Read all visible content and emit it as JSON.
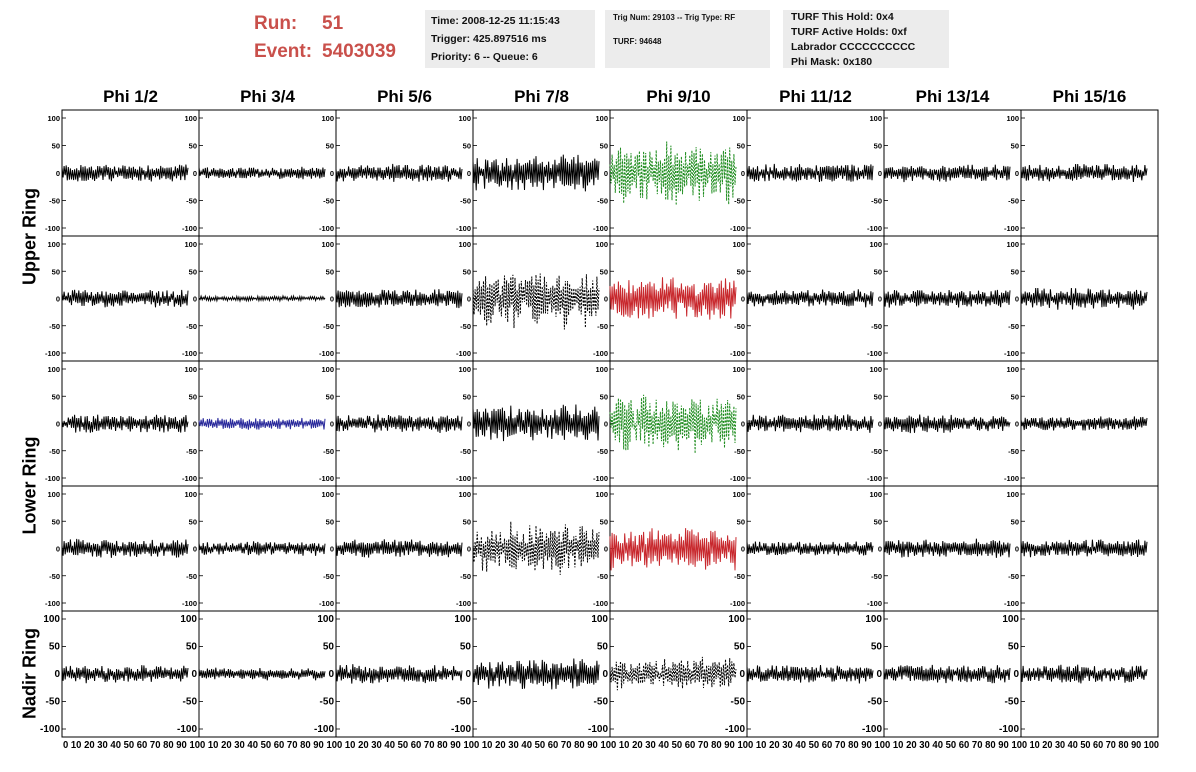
{
  "run": {
    "run_label": "Run:",
    "run_value": "51",
    "event_label": "Event:",
    "event_value": "5403039"
  },
  "info_boxes": {
    "time": "Time: 2008-12-25 11:15:43",
    "trigger": "Trigger: 425.897516 ms",
    "priority": "Priority: 6 -- Queue: 6",
    "trig_num": "Trig Num: 29103 -- Trig Type: RF",
    "turf": "TURF: 94648",
    "turf_this_hold": "TURF This Hold: 0x4",
    "turf_active_holds": "TURF Active Holds: 0xf",
    "labrador": "Labrador CCCCCCCCCC",
    "phi_mask": "Phi Mask: 0x180"
  },
  "columns": [
    "Phi 1/2",
    "Phi 3/4",
    "Phi 5/6",
    "Phi 7/8",
    "Phi 9/10",
    "Phi 11/12",
    "Phi 13/14",
    "Phi 15/16"
  ],
  "rows": [
    "Upper Ring",
    "Lower Ring",
    "Nadir Ring"
  ],
  "colors": {
    "normal": "#000000",
    "green": "#1e8c1e",
    "red": "#c8282d",
    "blue": "#2a2a9c",
    "header_red": "#c9504b",
    "info_bg": "#ececec"
  },
  "chart_data": {
    "type": "line",
    "xlim": [
      0,
      100
    ],
    "ylim": [
      -100,
      100
    ],
    "x_ticks": [
      0,
      10,
      20,
      30,
      40,
      50,
      60,
      70,
      80,
      90,
      100
    ],
    "y_ticks": [
      -100,
      -50,
      0,
      50,
      100
    ],
    "x_tick_labels": "0 10 20 30 40 50 60 70 80 90 10",
    "x_tick_labels_last": "0 10 20 30 40 50 60 70 80 90 100",
    "x_start": 0,
    "x_end": 92,
    "grid": false,
    "panel_rows": [
      {
        "ring": "Upper Ring",
        "antenna": "top",
        "amplitude": [
          15,
          10,
          14,
          30,
          55,
          15,
          14,
          15
        ],
        "style": [
          "solid",
          "solid",
          "solid",
          "solid",
          "dashed",
          "solid",
          "solid",
          "solid"
        ],
        "color": [
          "normal",
          "normal",
          "normal",
          "normal",
          "green",
          "normal",
          "normal",
          "normal"
        ]
      },
      {
        "ring": "Upper Ring",
        "antenna": "bottom",
        "amplitude": [
          15,
          4,
          15,
          50,
          35,
          15,
          15,
          18
        ],
        "style": [
          "solid",
          "solid",
          "solid",
          "dashed",
          "solid",
          "solid",
          "solid",
          "solid"
        ],
        "color": [
          "normal",
          "normal",
          "normal",
          "normal",
          "red",
          "normal",
          "normal",
          "normal"
        ]
      },
      {
        "ring": "Lower Ring",
        "antenna": "top",
        "amplitude": [
          15,
          10,
          15,
          30,
          50,
          15,
          15,
          12
        ],
        "style": [
          "solid",
          "solid",
          "solid",
          "solid",
          "dashed",
          "solid",
          "solid",
          "solid"
        ],
        "color": [
          "normal",
          "blue",
          "normal",
          "normal",
          "green",
          "normal",
          "normal",
          "normal"
        ]
      },
      {
        "ring": "Lower Ring",
        "antenna": "bottom",
        "amplitude": [
          15,
          12,
          15,
          45,
          35,
          12,
          15,
          15
        ],
        "style": [
          "solid",
          "solid",
          "solid",
          "dashed",
          "solid",
          "solid",
          "solid",
          "solid"
        ],
        "color": [
          "normal",
          "normal",
          "normal",
          "normal",
          "red",
          "normal",
          "normal",
          "normal"
        ]
      },
      {
        "ring": "Nadir Ring",
        "antenna": "single",
        "amplitude": [
          15,
          10,
          15,
          25,
          30,
          15,
          15,
          15
        ],
        "style": [
          "solid",
          "solid",
          "solid",
          "solid",
          "dashed",
          "solid",
          "solid",
          "solid"
        ],
        "color": [
          "normal",
          "normal",
          "normal",
          "normal",
          "normal",
          "normal",
          "normal",
          "normal"
        ]
      }
    ]
  }
}
